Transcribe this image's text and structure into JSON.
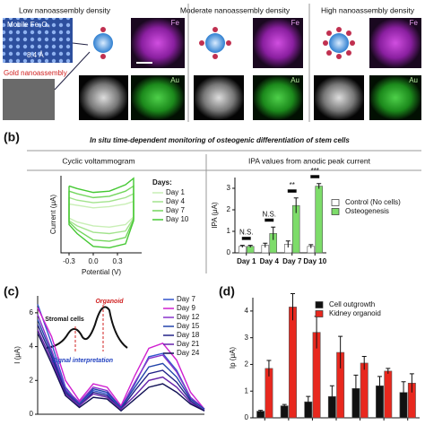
{
  "panel_a": {
    "headings": [
      "Low nanoassembly density",
      "Moderate nanoassembly density",
      "High nanoassembly density"
    ],
    "lattice_label": "Mobile Fe₃O₄",
    "spacing_label": "8.4 Å",
    "gold_label": "Gold nanoassembly",
    "fe_labels": [
      "Fe",
      "Fe",
      "Fe"
    ],
    "au_labels": [
      "Au",
      "Au",
      "Au"
    ]
  },
  "panel_labels": [
    "(b)",
    "(c)",
    "(d)"
  ],
  "panel_b_title": "In situ time-dependent monitoring of osteogenic differentiation of stem cells",
  "chart_data": [
    {
      "type": "line",
      "title": "Cyclic voltammogram",
      "x_label": "Potential (V)",
      "y_label": "Current (μA)",
      "legend_title": "Days:",
      "x": [
        -0.3,
        -0.2,
        0,
        0.2,
        0.4,
        0.5,
        0.5,
        0.4,
        0.2,
        0,
        -0.2,
        -0.3,
        -0.3
      ],
      "xlim": [
        -0.4,
        0.6
      ],
      "xticks": [
        -0.3,
        {
          "value": 0,
          "label": "0.0"
        },
        0.3
      ],
      "ylim": [
        -3,
        3
      ],
      "series": [
        {
          "name": "Day 1",
          "color": "#c9efb6",
          "values": [
            0.8,
            0.7,
            0.5,
            0.6,
            0.8,
            1.0,
            -0.2,
            -0.8,
            -1.0,
            -0.9,
            -0.6,
            -0.3,
            0.8
          ]
        },
        {
          "name": "Day 4",
          "color": "#a3e38d",
          "values": [
            1.3,
            1.1,
            0.9,
            1.0,
            1.3,
            1.6,
            -0.3,
            -1.3,
            -1.5,
            -1.4,
            -0.9,
            -0.5,
            1.3
          ]
        },
        {
          "name": "Day 7",
          "color": "#74d65e",
          "values": [
            1.8,
            1.6,
            1.3,
            1.4,
            1.8,
            2.2,
            -0.4,
            -1.8,
            -2.1,
            -2.0,
            -1.2,
            -0.6,
            1.8
          ]
        },
        {
          "name": "Day 10",
          "color": "#45c833",
          "values": [
            2.2,
            2.0,
            1.7,
            1.8,
            2.3,
            2.8,
            -0.5,
            -2.3,
            -2.6,
            -2.5,
            -1.5,
            -0.8,
            2.2
          ]
        }
      ]
    },
    {
      "type": "bar",
      "title": "IPA values from anodic peak current",
      "y_label": "IPA (μA)",
      "categories": [
        "Day 1",
        "Day 4",
        "Day 7",
        "Day 10"
      ],
      "ylim": [
        0,
        3.5
      ],
      "yticks": [
        0,
        1,
        2,
        3
      ],
      "significance": [
        "N.S.",
        "N.S.",
        "**",
        "***"
      ],
      "series": [
        {
          "name": "Control (No cells)",
          "color": "#ffffff",
          "values": [
            0.3,
            0.35,
            0.4,
            0.3
          ],
          "errors": [
            0.05,
            0.1,
            0.15,
            0.08
          ]
        },
        {
          "name": "Osteogenesis",
          "color": "#7ddc6a",
          "values": [
            0.3,
            0.9,
            2.2,
            3.1
          ],
          "errors": [
            0.05,
            0.3,
            0.35,
            0.12
          ]
        }
      ]
    },
    {
      "type": "line",
      "y_label": "I (μA)",
      "x": [
        0,
        1,
        2,
        3,
        4,
        5,
        6,
        7,
        8,
        9,
        10,
        11,
        12
      ],
      "xlim": [
        0,
        12
      ],
      "ylim": [
        0,
        7
      ],
      "yticks": [
        0,
        2,
        4,
        6
      ],
      "inset_labels": [
        "Stromal cells",
        "Organoid",
        "Signal interpretation"
      ],
      "series": [
        {
          "name": "Day 7",
          "color": "#3355cc",
          "values": [
            6.5,
            4.2,
            1.6,
            0.6,
            1.4,
            1.2,
            0.4,
            1.8,
            3.4,
            3.6,
            2.6,
            1.0,
            0.3
          ]
        },
        {
          "name": "Day 9",
          "color": "#d020d0",
          "values": [
            6.3,
            4.6,
            2.0,
            0.8,
            1.8,
            1.6,
            0.5,
            2.3,
            3.9,
            4.2,
            3.2,
            1.3,
            0.3
          ]
        },
        {
          "name": "Day 12",
          "color": "#8833cc",
          "values": [
            5.9,
            3.8,
            1.5,
            0.7,
            1.6,
            1.4,
            0.4,
            1.9,
            3.3,
            3.5,
            2.5,
            1.0,
            0.3
          ]
        },
        {
          "name": "Day 15",
          "color": "#2244aa",
          "values": [
            5.6,
            3.6,
            1.4,
            0.6,
            1.5,
            1.3,
            0.4,
            1.6,
            2.8,
            3.0,
            2.2,
            0.9,
            0.3
          ]
        },
        {
          "name": "Day 18",
          "color": "#222288",
          "values": [
            5.3,
            3.4,
            1.3,
            0.5,
            1.3,
            1.1,
            0.3,
            1.4,
            2.4,
            2.6,
            1.9,
            0.8,
            0.2
          ]
        },
        {
          "name": "Day 21",
          "color": "#6622aa",
          "values": [
            5.0,
            3.2,
            1.2,
            0.5,
            1.2,
            1.0,
            0.3,
            1.1,
            2.0,
            2.2,
            1.6,
            0.7,
            0.2
          ]
        },
        {
          "name": "Day 24",
          "color": "#111155",
          "values": [
            4.8,
            3.0,
            1.1,
            0.4,
            1.0,
            0.9,
            0.2,
            0.9,
            1.6,
            1.8,
            1.3,
            0.6,
            0.2
          ]
        }
      ]
    },
    {
      "type": "bar",
      "y_label": "Ip (μA)",
      "categories": [
        null,
        null,
        null,
        null,
        null,
        null,
        null
      ],
      "ylim": [
        0,
        4.5
      ],
      "yticks": [
        0,
        1,
        2,
        3,
        4
      ],
      "series": [
        {
          "name": "Cell outgrowth",
          "color": "#111111",
          "values": [
            0.25,
            0.45,
            0.6,
            0.8,
            1.1,
            1.2,
            0.95
          ],
          "errors": [
            0.03,
            0.05,
            0.2,
            0.4,
            0.5,
            0.35,
            0.4
          ]
        },
        {
          "name": "Kidney organoid",
          "color": "#e8281e",
          "values": [
            1.85,
            4.15,
            3.2,
            2.45,
            2.05,
            1.75,
            1.3
          ],
          "errors": [
            0.3,
            0.5,
            0.6,
            0.6,
            0.25,
            0.1,
            0.35
          ]
        }
      ]
    }
  ]
}
